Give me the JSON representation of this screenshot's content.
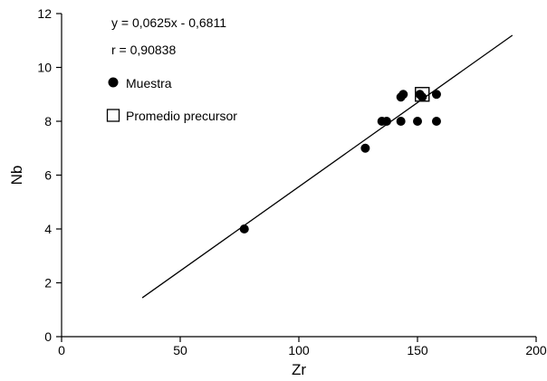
{
  "chart_data": {
    "type": "scatter",
    "xlabel": "Zr",
    "ylabel": "Nb",
    "xlim": [
      0,
      200
    ],
    "ylim": [
      0,
      12
    ],
    "xticks": [
      0,
      50,
      100,
      150,
      200
    ],
    "yticks": [
      0,
      2,
      4,
      6,
      8,
      10,
      12
    ],
    "grid": false,
    "annotations": {
      "equation": "y = 0,0625x - 0,6811",
      "correlation": "r = 0,90838"
    },
    "series": [
      {
        "name": "Muestra",
        "marker": "filled-circle",
        "points": [
          {
            "x": 77,
            "y": 4
          },
          {
            "x": 128,
            "y": 7
          },
          {
            "x": 135,
            "y": 8
          },
          {
            "x": 137,
            "y": 8
          },
          {
            "x": 143,
            "y": 8
          },
          {
            "x": 143,
            "y": 8.9
          },
          {
            "x": 144,
            "y": 9
          },
          {
            "x": 150,
            "y": 8
          },
          {
            "x": 151,
            "y": 9
          },
          {
            "x": 152,
            "y": 8.9
          },
          {
            "x": 158,
            "y": 9
          },
          {
            "x": 158,
            "y": 8
          }
        ]
      },
      {
        "name": "Promedio precursor",
        "marker": "open-square",
        "points": [
          {
            "x": 152,
            "y": 9
          }
        ]
      }
    ],
    "fit_line": {
      "slope": 0.0625,
      "intercept": -0.6811,
      "x_start": 34,
      "x_end": 190
    }
  }
}
